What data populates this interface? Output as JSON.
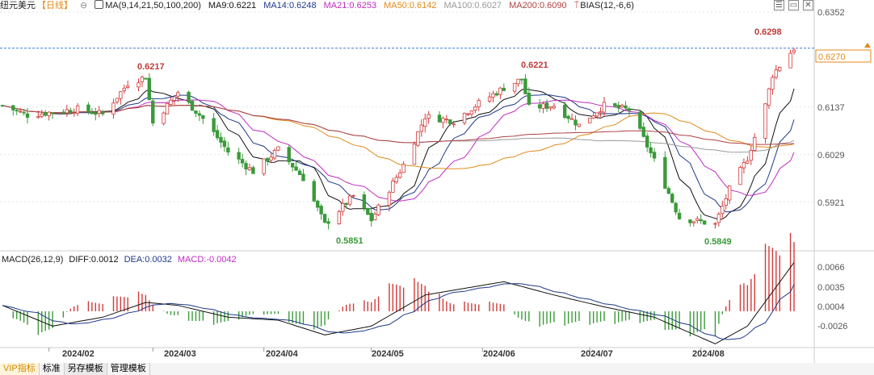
{
  "header": {
    "title": "纽元美元",
    "period": "【日线】",
    "ma_params": "MA(9,14,21,50,100,200)",
    "ma9": "MA9:0.6221",
    "ma14": "MA14:0.6248",
    "ma21": "MA21:0.6253",
    "ma50": "MA50:0.6142",
    "ma100": "MA100:0.6027",
    "ma200": "MA200:0.6090",
    "bias": "BIAS(12,-6,6)"
  },
  "corner_buttons": [
    "☰",
    "▭",
    "✕"
  ],
  "main_axis": {
    "ticks": [
      "0.6352",
      "0.6137",
      "0.6029",
      "0.5921"
    ],
    "current_price": "0.6270"
  },
  "annotations": {
    "high_feb": "0.6217",
    "low_apr": "0.5851",
    "high_jun": "0.6221",
    "low_aug": "0.5849",
    "high_aug": "0.6298"
  },
  "macd": {
    "params": "MACD(26,12,9)",
    "diff": "DIFF:0.0012",
    "dea": "DEA:0.0032",
    "macd": "MACD:-0.0042",
    "ticks": [
      "0.0066",
      "0.0035",
      "0.0004",
      "-0.0026"
    ]
  },
  "x_labels": [
    "2024/02",
    "2024/03",
    "2024/04",
    "2024/05",
    "2024/06",
    "2024/07",
    "2024/08"
  ],
  "bottom_tabs": [
    "VIP指标",
    "标准",
    "另存模板",
    "管理模板"
  ],
  "colors": {
    "up": "#d23a3a",
    "down": "#3a9a3a",
    "ma9": "#111111",
    "ma14": "#1e3a8a",
    "ma21": "#c02cc0",
    "ma50": "#e08a1a",
    "ma100": "#9a9a9a",
    "ma200": "#b04040",
    "grid": "#e6e6e6",
    "price_line": "#3a7bd5"
  },
  "chart_data": {
    "type": "candlestick",
    "instrument": "NZD/USD",
    "interval": "daily",
    "ylim": [
      0.5821,
      0.6352
    ],
    "x_range": [
      "2024-01-19",
      "2024-08-27"
    ],
    "anchors": [
      {
        "date": "2024-01-19",
        "close": 0.614
      },
      {
        "date": "2024-01-26",
        "close": 0.6118
      },
      {
        "date": "2024-02-02",
        "close": 0.6125
      },
      {
        "date": "2024-02-09",
        "close": 0.6132
      },
      {
        "date": "2024-02-16",
        "close": 0.612
      },
      {
        "date": "2024-02-23",
        "close": 0.619
      },
      {
        "date": "2024-02-28",
        "close": 0.6205
      },
      {
        "date": "2024-03-01",
        "close": 0.61
      },
      {
        "date": "2024-03-08",
        "close": 0.617
      },
      {
        "date": "2024-03-15",
        "close": 0.611
      },
      {
        "date": "2024-03-22",
        "close": 0.6035
      },
      {
        "date": "2024-03-29",
        "close": 0.599
      },
      {
        "date": "2024-04-05",
        "close": 0.604
      },
      {
        "date": "2024-04-12",
        "close": 0.5975
      },
      {
        "date": "2024-04-18",
        "close": 0.587
      },
      {
        "date": "2024-04-26",
        "close": 0.5935
      },
      {
        "date": "2024-05-01",
        "close": 0.588
      },
      {
        "date": "2024-05-10",
        "close": 0.6005
      },
      {
        "date": "2024-05-16",
        "close": 0.6115
      },
      {
        "date": "2024-05-24",
        "close": 0.6105
      },
      {
        "date": "2024-05-31",
        "close": 0.6145
      },
      {
        "date": "2024-06-07",
        "close": 0.618
      },
      {
        "date": "2024-06-12",
        "close": 0.62
      },
      {
        "date": "2024-06-14",
        "close": 0.6135
      },
      {
        "date": "2024-06-21",
        "close": 0.614
      },
      {
        "date": "2024-06-28",
        "close": 0.6095
      },
      {
        "date": "2024-07-05",
        "close": 0.614
      },
      {
        "date": "2024-07-12",
        "close": 0.613
      },
      {
        "date": "2024-07-19",
        "close": 0.6015
      },
      {
        "date": "2024-07-26",
        "close": 0.5885
      },
      {
        "date": "2024-08-05",
        "close": 0.587
      },
      {
        "date": "2024-08-09",
        "close": 0.595
      },
      {
        "date": "2024-08-14",
        "close": 0.602
      },
      {
        "date": "2024-08-19",
        "close": 0.614
      },
      {
        "date": "2024-08-21",
        "close": 0.621
      },
      {
        "date": "2024-08-27",
        "close": 0.627
      }
    ],
    "macd_ylim": [
      -0.0048,
      0.0072
    ],
    "macd_anchors": [
      {
        "date": "2024-01-19",
        "value": 0.0008
      },
      {
        "date": "2024-02-02",
        "value": -0.002
      },
      {
        "date": "2024-02-16",
        "value": -0.0008
      },
      {
        "date": "2024-02-28",
        "value": 0.0012
      },
      {
        "date": "2024-03-08",
        "value": 0.0008
      },
      {
        "date": "2024-03-22",
        "value": -0.0008
      },
      {
        "date": "2024-04-05",
        "value": -0.0012
      },
      {
        "date": "2024-04-18",
        "value": -0.0032
      },
      {
        "date": "2024-05-01",
        "value": -0.002
      },
      {
        "date": "2024-05-16",
        "value": 0.0022
      },
      {
        "date": "2024-06-07",
        "value": 0.004
      },
      {
        "date": "2024-06-21",
        "value": 0.0022
      },
      {
        "date": "2024-07-05",
        "value": 0.0006
      },
      {
        "date": "2024-07-19",
        "value": -0.0008
      },
      {
        "date": "2024-08-05",
        "value": -0.0044
      },
      {
        "date": "2024-08-14",
        "value": -0.002
      },
      {
        "date": "2024-08-27",
        "value": 0.0066
      }
    ]
  }
}
